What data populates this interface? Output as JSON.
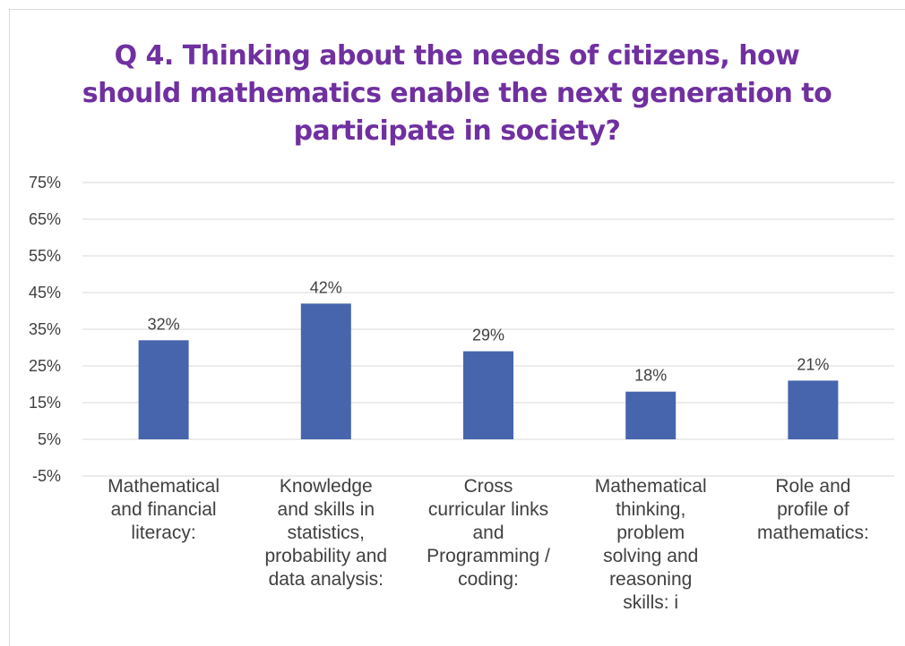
{
  "chart_data": {
    "type": "bar",
    "title_lines": [
      "Q 4. Thinking about the needs of citizens, how",
      "should mathematics enable the next generation to",
      "participate in society?"
    ],
    "categories": [
      [
        "Mathematical",
        "and financial",
        "literacy:"
      ],
      [
        "Knowledge",
        "and skills in",
        "statistics,",
        "probability and",
        "data analysis:"
      ],
      [
        "Cross",
        "curricular links",
        "and",
        "Programming /",
        "coding:"
      ],
      [
        "Mathematical",
        "thinking,",
        "problem",
        "solving and",
        "reasoning",
        "skills: i"
      ],
      [
        "Role and",
        "profile of",
        "mathematics:"
      ]
    ],
    "values": [
      32,
      42,
      29,
      18,
      21
    ],
    "data_labels": [
      "32%",
      "42%",
      "29%",
      "18%",
      "21%"
    ],
    "y_ticks": [
      "75%",
      "65%",
      "55%",
      "45%",
      "35%",
      "25%",
      "15%",
      "5%",
      "-5%"
    ],
    "y_tick_values": [
      75,
      65,
      55,
      45,
      35,
      25,
      15,
      5,
      -5
    ],
    "ylim": [
      -5,
      75
    ],
    "grid": true,
    "colors": {
      "bar": "#4665ad",
      "title": "#7030a0",
      "grid": "#d9d9d9",
      "text": "#404040"
    }
  }
}
